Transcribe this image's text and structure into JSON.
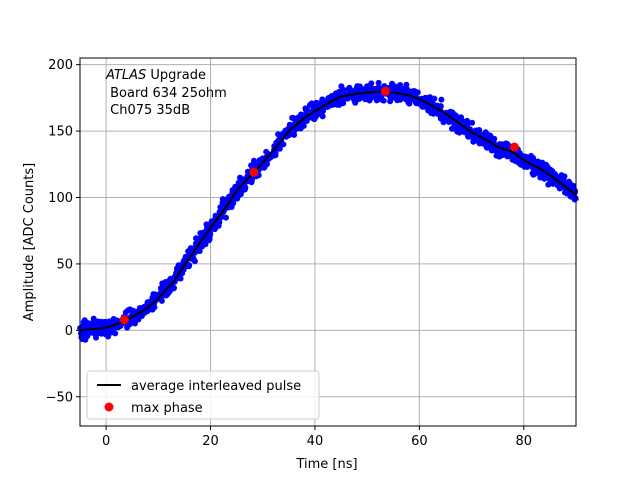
{
  "chart_data": {
    "type": "scatter",
    "xlabel": "Time [ns]",
    "ylabel": "Amplitude [ADC Counts]",
    "xlim": [
      -5,
      90
    ],
    "ylim": [
      -72,
      205
    ],
    "xticks": [
      "0",
      "20",
      "40",
      "60",
      "80"
    ],
    "yticks": [
      "−50",
      "0",
      "50",
      "100",
      "150",
      "200"
    ],
    "xtick_values": [
      0,
      20,
      40,
      60,
      80
    ],
    "ytick_values": [
      -50,
      0,
      50,
      100,
      150,
      200
    ],
    "grid": true,
    "legend_position": "lower-left",
    "annotation": {
      "line1_italic": "ATLAS",
      "line1_rest": " Upgrade",
      "line2": " Board 634 25ohm",
      "line3": " Ch075 35dB"
    },
    "series": [
      {
        "name": "average interleaved pulse",
        "style": "line",
        "color": "#000000",
        "x": [
          -5,
          0,
          3,
          5,
          8,
          10,
          13,
          15,
          18,
          20,
          23,
          25,
          28,
          30,
          33,
          35,
          38,
          40,
          43,
          45,
          48,
          50,
          53,
          55,
          58,
          60,
          63,
          65,
          68,
          70,
          73,
          75,
          78,
          80,
          83,
          85,
          88,
          90
        ],
        "y": [
          0,
          2,
          6,
          10,
          17,
          24,
          37,
          49,
          66,
          77,
          93,
          105,
          118,
          126,
          140,
          150,
          160,
          165,
          172,
          176,
          178,
          179,
          180,
          179,
          177,
          174,
          168,
          163,
          155,
          149,
          143,
          138,
          134,
          128,
          122,
          117,
          108,
          102
        ]
      },
      {
        "name": "samples",
        "style": "scatter",
        "color": "#0000ff",
        "note_of_band": "dense noisy samples scattered about the average pulse"
      },
      {
        "name": "max phase",
        "style": "scatter",
        "color": "#ff0000",
        "x": [
          3.5,
          28.3,
          53.5,
          78.2
        ],
        "y": [
          8,
          119,
          180,
          138
        ]
      }
    ]
  }
}
